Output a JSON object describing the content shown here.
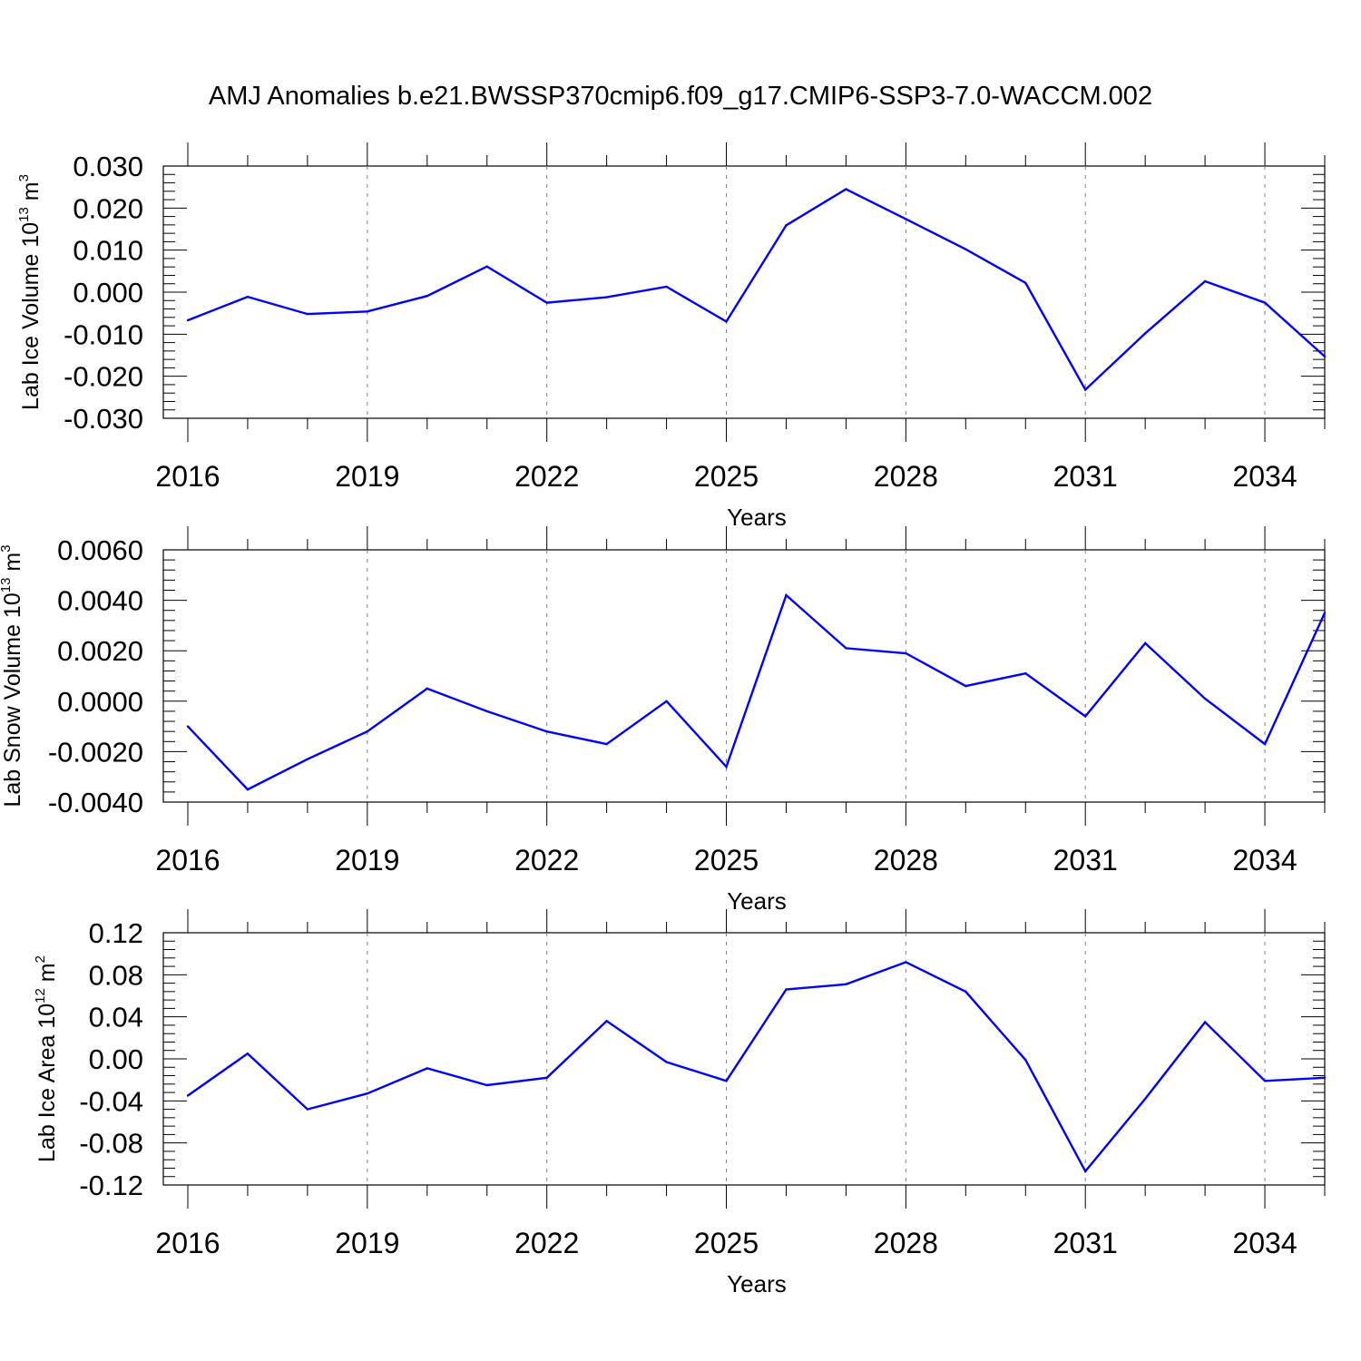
{
  "title": "AMJ Anomalies b.e21.BWSSP370cmip6.f09_g17.CMIP6-SSP3-7.0-WACCM.002",
  "colors": {
    "line": "#0000ff",
    "axis": "#000000",
    "grid": "#808080"
  },
  "chart_data": [
    {
      "type": "line",
      "ylabel": "Lab Ice Volume 10",
      "ylabel_exp": "13",
      "ylabel_unit": " m",
      "ylabel_unit_exp": "3",
      "xlabel": "Years",
      "xlim": [
        2016,
        2035
      ],
      "ylim": [
        -0.03,
        0.03
      ],
      "yticks": [
        -0.03,
        -0.02,
        -0.01,
        0.0,
        0.01,
        0.02,
        0.03
      ],
      "ytick_labels": [
        "-0.030",
        "-0.020",
        "-0.010",
        "0.000",
        "0.010",
        "0.020",
        "0.030"
      ],
      "xticks": [
        2016,
        2019,
        2022,
        2025,
        2028,
        2031,
        2034
      ],
      "xtick_labels": [
        "2016",
        "2019",
        "2022",
        "2025",
        "2028",
        "2031",
        "2034"
      ],
      "x": [
        2016,
        2017,
        2018,
        2019,
        2020,
        2021,
        2022,
        2023,
        2024,
        2025,
        2026,
        2027,
        2028,
        2029,
        2030,
        2031,
        2032,
        2033,
        2034,
        2035
      ],
      "values": [
        -0.0067,
        -0.0011,
        -0.0052,
        -0.0046,
        -0.0009,
        0.0061,
        -0.0025,
        -0.0012,
        0.0013,
        -0.007,
        0.0159,
        0.0245,
        0.0174,
        0.0102,
        0.0022,
        -0.0232,
        -0.0098,
        0.0026,
        -0.0025,
        -0.0153
      ]
    },
    {
      "type": "line",
      "ylabel": "Lab Snow Volume 10",
      "ylabel_exp": "13",
      "ylabel_unit": " m",
      "ylabel_unit_exp": "3",
      "xlabel": "Years",
      "xlim": [
        2016,
        2035
      ],
      "ylim": [
        -0.004,
        0.006
      ],
      "yticks": [
        -0.004,
        -0.002,
        0.0,
        0.002,
        0.004,
        0.006
      ],
      "ytick_labels": [
        "-0.0040",
        "-0.0020",
        "0.0000",
        "0.0020",
        "0.0040",
        "0.0060"
      ],
      "xticks": [
        2016,
        2019,
        2022,
        2025,
        2028,
        2031,
        2034
      ],
      "xtick_labels": [
        "2016",
        "2019",
        "2022",
        "2025",
        "2028",
        "2031",
        "2034"
      ],
      "x": [
        2016,
        2017,
        2018,
        2019,
        2020,
        2021,
        2022,
        2023,
        2024,
        2025,
        2026,
        2027,
        2028,
        2029,
        2030,
        2031,
        2032,
        2033,
        2034,
        2035
      ],
      "values": [
        -0.001,
        -0.0035,
        -0.0023,
        -0.0012,
        0.0005,
        -0.0004,
        -0.0012,
        -0.0017,
        0.0,
        -0.0026,
        0.0042,
        0.0021,
        0.0019,
        0.0006,
        0.0011,
        -0.0006,
        0.0023,
        0.0001,
        -0.0017,
        0.0035
      ]
    },
    {
      "type": "line",
      "ylabel": "Lab Ice Area 10",
      "ylabel_exp": "12",
      "ylabel_unit": " m",
      "ylabel_unit_exp": "2",
      "xlabel": "Years",
      "xlim": [
        2016,
        2035
      ],
      "ylim": [
        -0.12,
        0.12
      ],
      "yticks": [
        -0.12,
        -0.08,
        -0.04,
        0.0,
        0.04,
        0.08,
        0.12
      ],
      "ytick_labels": [
        "-0.12",
        "-0.08",
        "-0.04",
        "0.00",
        "0.04",
        "0.08",
        "0.12"
      ],
      "xticks": [
        2016,
        2019,
        2022,
        2025,
        2028,
        2031,
        2034
      ],
      "xtick_labels": [
        "2016",
        "2019",
        "2022",
        "2025",
        "2028",
        "2031",
        "2034"
      ],
      "x": [
        2016,
        2017,
        2018,
        2019,
        2020,
        2021,
        2022,
        2023,
        2024,
        2025,
        2026,
        2027,
        2028,
        2029,
        2030,
        2031,
        2032,
        2033,
        2034,
        2035
      ],
      "values": [
        -0.035,
        0.005,
        -0.048,
        -0.033,
        -0.009,
        -0.025,
        -0.018,
        0.036,
        -0.003,
        -0.021,
        0.066,
        0.071,
        0.092,
        0.064,
        -0.001,
        -0.107,
        -0.038,
        0.035,
        -0.021,
        -0.018
      ]
    }
  ]
}
